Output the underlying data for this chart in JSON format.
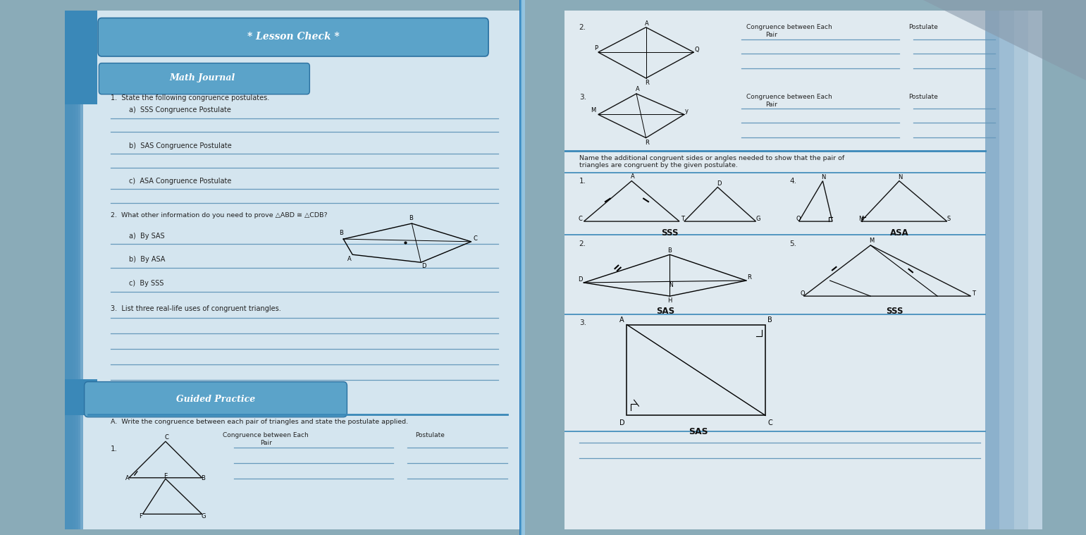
{
  "fig_w": 15.41,
  "fig_h": 7.59,
  "dpi": 100,
  "bg_color": "#8aabb8",
  "left_page_color": "#ccdde8",
  "right_page_color": "#dde8ee",
  "spine_color": "#3a7aaa",
  "blue_strip_color": "#4a8fbc",
  "banner_color": "#5ba3c9",
  "banner_text_color": "#ffffff",
  "text_color": "#222222",
  "line_color": "#7799bb",
  "dark_corner_color": "#556677",
  "lesson_check": "* Lesson Check *",
  "math_journal": "Math Journal",
  "guided_practice": "Guided Practice",
  "q1": "1.  State the following congruence postulates.",
  "q1a": "a)  SSS Congruence Postulate",
  "q1b": "b)  SAS Congruence Postulate",
  "q1c": "c)  ASA Congruence Postulate",
  "q2": "2.  What other information do you need to prove △ABD ≅ △CDB?",
  "q2a": "a)  By SAS",
  "q2b": "b)  By ASA",
  "q2c": "c)  By SSS",
  "q3": "3.  List three real-life uses of congruent triangles.",
  "gp_a": "A.  Write the congruence between each pair of triangles and state the postulate applied.",
  "gp_col1": "Congruence between Each\nPair",
  "gp_col2": "Postulate",
  "right_instr": "Name the additional congruent sides or angles needed to show that the pair of\ntriangles are congruent by the given postulate.",
  "right_header_col1": "Congruence between Each\nPair",
  "right_header_col2": "Postulate",
  "lbl_sss": "SSS",
  "lbl_asa": "ASA",
  "lbl_sas": "SAS",
  "lbl_sss2": "SSS",
  "lbl_sas2": "SAS"
}
